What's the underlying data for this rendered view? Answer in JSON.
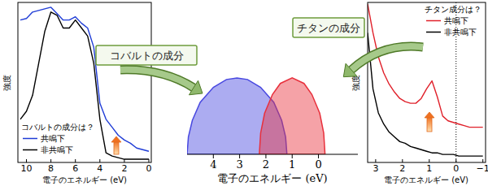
{
  "chart_data": [
    {
      "type": "line",
      "x_label": "電子のエネルギー (eV)",
      "y_label": "強度",
      "legend_title": "コバルトの成分は？",
      "legend": "bottom-left",
      "annotations": [
        "コバルトの成分"
      ],
      "x": [
        10.5,
        10,
        9.5,
        9,
        8.5,
        8,
        7.5,
        7,
        6.5,
        6,
        5.5,
        5,
        4.5,
        4,
        3.5,
        3,
        2.5,
        2,
        1.5,
        1,
        0.5,
        0
      ],
      "series": [
        {
          "name": "共鳴下",
          "color": "#1f3cd6",
          "values": [
            89,
            90,
            94,
            95,
            96,
            97,
            93,
            89,
            89,
            91,
            87,
            84,
            72,
            37,
            27,
            22,
            17,
            14,
            12,
            9,
            8,
            7
          ]
        },
        {
          "name": "非共鳴下",
          "color": "#000000",
          "values": [
            27,
            32,
            42,
            62,
            82,
            94,
            92,
            84,
            84,
            89,
            84,
            79,
            62,
            27,
            6,
            4,
            3,
            2,
            2,
            2,
            2,
            2
          ]
        }
      ],
      "xlim": [
        10.7,
        -0.2
      ],
      "xticks": [
        10,
        8,
        6,
        4,
        2,
        0
      ],
      "ylim": [
        0,
        100
      ],
      "tick_labels": "x"
    },
    {
      "type": "area",
      "x_label": "電子のエネルギー (eV)",
      "series": [
        {
          "color": "#4848e0",
          "x": [
            5.0,
            4.95,
            4.8,
            4.5,
            4.0,
            3.5,
            3.1,
            2.7,
            2.2,
            1.7,
            1.4,
            1.25,
            1.2
          ],
          "values": [
            0,
            22,
            43,
            66,
            85,
            95,
            97,
            95,
            85,
            66,
            43,
            22,
            0
          ]
        },
        {
          "color": "#e8303c",
          "x": [
            2.25,
            2.2,
            2.05,
            1.75,
            1.45,
            1.0,
            0.55,
            0.25,
            -0.05,
            -0.2,
            -0.25
          ],
          "values": [
            0,
            27,
            52,
            76,
            90,
            97,
            90,
            76,
            52,
            27,
            0
          ]
        }
      ],
      "xlim": [
        5.0,
        -1.5
      ],
      "xticks": [
        4,
        3,
        2,
        1,
        0
      ],
      "ylim": [
        0,
        100
      ],
      "tick_labels": "x"
    },
    {
      "type": "line",
      "x_label": "電子のエネルギー (eV)",
      "y_label": "強度",
      "legend_title": "チタン成分は？",
      "legend": "top-right",
      "annotations": [
        "チタンの成分"
      ],
      "vline": 0,
      "x": [
        3.3,
        3.1,
        2.9,
        2.7,
        2.5,
        2.3,
        2.1,
        1.9,
        1.7,
        1.5,
        1.3,
        1.1,
        0.9,
        0.7,
        0.5,
        0.3,
        0.1,
        -0.1,
        -0.3,
        -0.5,
        -0.7,
        -1.0
      ],
      "series": [
        {
          "name": "共鳴下",
          "color": "#e0202a",
          "values": [
            99,
            81,
            66,
            56,
            49,
            44,
            40,
            38,
            37,
            37,
            40,
            46,
            51,
            41,
            29,
            26,
            25,
            24,
            23,
            22,
            22,
            22
          ]
        },
        {
          "name": "非共鳴下",
          "color": "#000000",
          "values": [
            81,
            46,
            31,
            24,
            19,
            16,
            13,
            12,
            10,
            9,
            8,
            7,
            6,
            6,
            5,
            5,
            5,
            4,
            4,
            4,
            4,
            4
          ]
        }
      ],
      "xlim": [
        3.3,
        -1.1
      ],
      "xticks": [
        3,
        2,
        1,
        0,
        {
          "value": -1,
          "label": "−1"
        }
      ],
      "ylim": [
        0,
        100
      ],
      "tick_labels": "x"
    }
  ]
}
